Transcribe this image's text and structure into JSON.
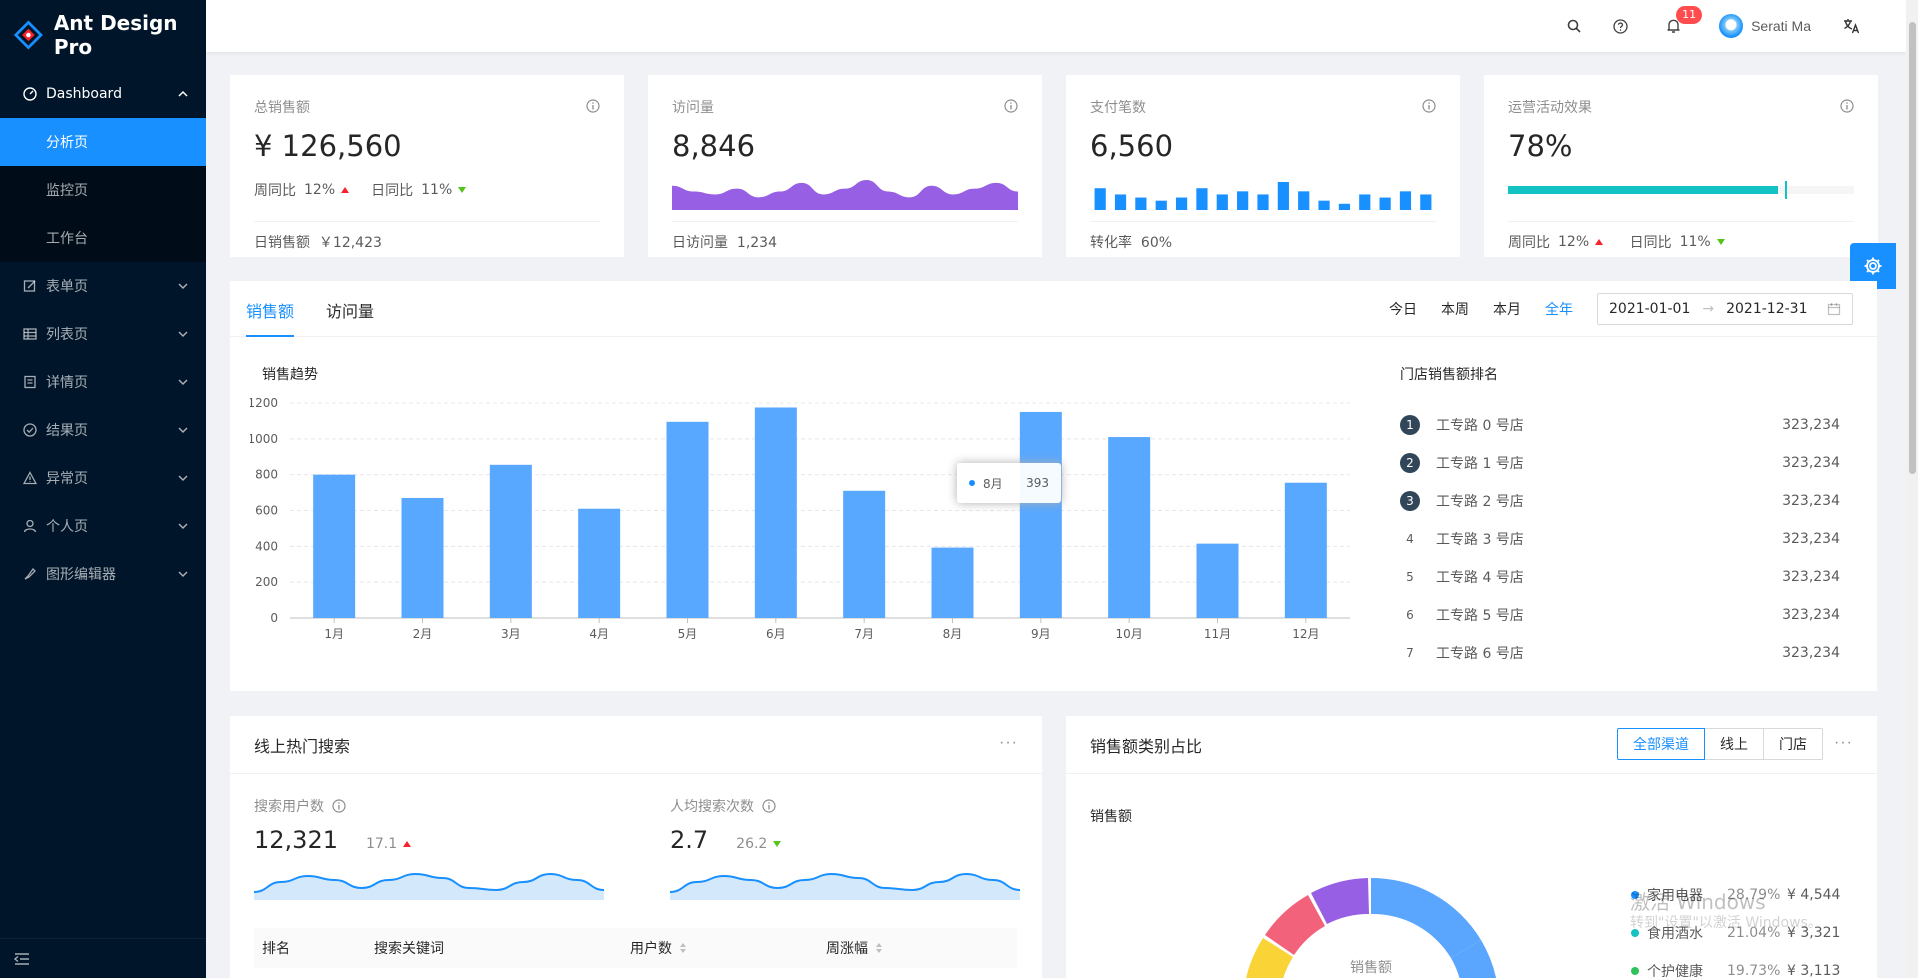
{
  "app": {
    "title": "Ant Design Pro"
  },
  "sidebar": {
    "dashboard": {
      "label": "Dashboard"
    },
    "submenu": [
      "分析页",
      "监控页",
      "工作台"
    ],
    "items": [
      {
        "label": "表单页",
        "icon": "form-icon"
      },
      {
        "label": "列表页",
        "icon": "table-icon"
      },
      {
        "label": "详情页",
        "icon": "profile-icon"
      },
      {
        "label": "结果页",
        "icon": "check-circle-icon"
      },
      {
        "label": "异常页",
        "icon": "warning-icon"
      },
      {
        "label": "个人页",
        "icon": "user-icon"
      },
      {
        "label": "图形编辑器",
        "icon": "highlight-icon"
      }
    ]
  },
  "header": {
    "notification_count": "11",
    "user_name": "Serati Ma"
  },
  "stats": [
    {
      "title": "总销售额",
      "value": "¥ 126,560",
      "week_label": "周同比",
      "week_value": "12%",
      "day_label": "日同比",
      "day_value": "11%",
      "foot_label": "日销售额",
      "foot_value": "￥12,423"
    },
    {
      "title": "访问量",
      "value": "8,846",
      "foot_label": "日访问量",
      "foot_value": "1,234"
    },
    {
      "title": "支付笔数",
      "value": "6,560",
      "foot_label": "转化率",
      "foot_value": "60%"
    },
    {
      "title": "运营活动效果",
      "value": "78%",
      "progress": 78,
      "week_label": "周同比",
      "week_value": "12%",
      "day_label": "日同比",
      "day_value": "11%"
    }
  ],
  "visits_area": [
    7,
    5,
    4,
    6,
    3,
    5,
    8,
    4,
    6,
    9,
    5,
    3,
    7,
    4,
    6,
    8,
    5
  ],
  "payment_bars": [
    7,
    5,
    4,
    3,
    4,
    7,
    5,
    6,
    5,
    9,
    6,
    3,
    2,
    5,
    4,
    6,
    5
  ],
  "sales_card": {
    "tabs": [
      "销售额",
      "访问量"
    ],
    "ranges": [
      "今日",
      "本周",
      "本月",
      "全年"
    ],
    "date_start": "2021-01-01",
    "date_end": "2021-12-31",
    "chart_title": "销售趋势",
    "rank_title": "门店销售额排名",
    "tooltip": {
      "label": "8月",
      "value": "393"
    },
    "rank": [
      {
        "num": "1",
        "name": "工专路 0 号店",
        "value": "323,234"
      },
      {
        "num": "2",
        "name": "工专路 1 号店",
        "value": "323,234"
      },
      {
        "num": "3",
        "name": "工专路 2 号店",
        "value": "323,234"
      },
      {
        "num": "4",
        "name": "工专路 3 号店",
        "value": "323,234"
      },
      {
        "num": "5",
        "name": "工专路 4 号店",
        "value": "323,234"
      },
      {
        "num": "6",
        "name": "工专路 5 号店",
        "value": "323,234"
      },
      {
        "num": "7",
        "name": "工专路 6 号店",
        "value": "323,234"
      }
    ]
  },
  "chart_data": {
    "type": "bar",
    "title": "销售趋势",
    "categories": [
      "1月",
      "2月",
      "3月",
      "4月",
      "5月",
      "6月",
      "7月",
      "8月",
      "9月",
      "10月",
      "11月",
      "12月"
    ],
    "values": [
      800,
      670,
      855,
      610,
      1095,
      1175,
      710,
      393,
      1150,
      1010,
      415,
      755
    ],
    "yticks": [
      "0",
      "200",
      "400",
      "600",
      "800",
      "1000",
      "1200"
    ],
    "ylim": [
      0,
      1200
    ],
    "color": "#58a8ff"
  },
  "search_card": {
    "title": "线上热门搜索",
    "users_label": "搜索用户数",
    "users_value": "12,321",
    "users_sub": "17.1",
    "avg_label": "人均搜索次数",
    "avg_value": "2.7",
    "avg_sub": "26.2",
    "columns": [
      "排名",
      "搜索关键词",
      "用户数",
      "周涨幅"
    ]
  },
  "pie_card": {
    "title": "销售额类别占比",
    "radios": [
      "全部渠道",
      "线上",
      "门店"
    ],
    "sub_title": "销售额",
    "center_label": "销售额",
    "legend": [
      {
        "name": "家用电器",
        "pct": "28.79%",
        "value": "¥ 4,544",
        "color": "#1890ff"
      },
      {
        "name": "食用酒水",
        "pct": "21.04%",
        "value": "¥ 3,321",
        "color": "#13c2c2"
      },
      {
        "name": "个护健康",
        "pct": "19.73%",
        "value": "¥ 3,113",
        "color": "#2fc25b"
      }
    ]
  },
  "watermark": {
    "line1": "激活 Windows",
    "line2": "转到\"设置\"以激活 Windows。"
  }
}
